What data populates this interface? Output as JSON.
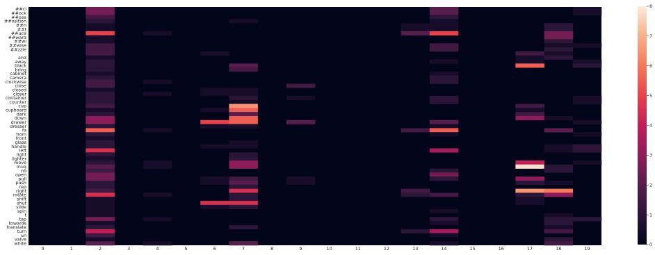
{
  "chart_data": {
    "type": "heatmap",
    "title": "",
    "xlabel": "",
    "ylabel": "",
    "x": [
      "0",
      "1",
      "2",
      "3",
      "4",
      "5",
      "6",
      "7",
      "8",
      "9",
      "10",
      "11",
      "12",
      "13",
      "14",
      "15",
      "16",
      "17",
      "18",
      "19"
    ],
    "y": [
      "##cl",
      "##ock",
      "##ose",
      "##osition",
      "##rl",
      "##t",
      "##uce",
      "##ward",
      "##wi",
      "##wise",
      "##zzle",
      "",
      "and",
      "away",
      "black",
      "bring",
      "cabinet",
      "camera",
      "clockwise",
      "close",
      "closed",
      "closer",
      "container",
      "counter",
      "cup",
      "cupboard",
      "dark",
      "down",
      "drawer",
      "dresser",
      "fa",
      "from",
      "front",
      "glass",
      "handle",
      "left",
      "light",
      "lighter",
      "move",
      "mug",
      "no",
      "open",
      "pull",
      "push",
      "rep",
      "right",
      "rotate",
      "shift",
      "shut",
      "slide",
      "spin",
      "t",
      "tap",
      "towards",
      "translate",
      "turn",
      "un",
      "valve",
      "white"
    ],
    "colorbar": {
      "min": 0,
      "max": 8,
      "ticks": [
        0,
        1,
        2,
        3,
        4,
        5,
        6,
        7,
        8
      ]
    },
    "grid": false,
    "cells": [
      [
        0,
        2,
        2.5
      ],
      [
        0,
        14,
        2
      ],
      [
        0,
        19,
        0.5
      ],
      [
        1,
        2,
        2.5
      ],
      [
        1,
        14,
        2
      ],
      [
        1,
        19,
        0.5
      ],
      [
        2,
        2,
        1.5
      ],
      [
        2,
        14,
        1
      ],
      [
        3,
        2,
        1
      ],
      [
        3,
        7,
        0.5
      ],
      [
        3,
        14,
        0.5
      ],
      [
        4,
        2,
        0.5
      ],
      [
        4,
        13,
        0.5
      ],
      [
        4,
        14,
        0.5
      ],
      [
        4,
        18,
        1
      ],
      [
        5,
        2,
        0.5
      ],
      [
        5,
        13,
        0.5
      ],
      [
        5,
        14,
        0.5
      ],
      [
        5,
        18,
        1
      ],
      [
        6,
        2,
        5
      ],
      [
        6,
        4,
        0.5
      ],
      [
        6,
        13,
        2
      ],
      [
        6,
        14,
        5
      ],
      [
        6,
        18,
        2.5
      ],
      [
        7,
        2,
        0.5
      ],
      [
        7,
        18,
        2.5
      ],
      [
        8,
        2,
        0.5
      ],
      [
        8,
        18,
        1
      ],
      [
        9,
        2,
        1.5
      ],
      [
        9,
        14,
        1.5
      ],
      [
        9,
        18,
        0.5
      ],
      [
        9,
        19,
        0.5
      ],
      [
        10,
        2,
        1.5
      ],
      [
        10,
        14,
        1.5
      ],
      [
        10,
        18,
        1
      ],
      [
        11,
        2,
        1.5
      ],
      [
        11,
        6,
        0.5
      ],
      [
        11,
        17,
        1.5
      ],
      [
        11,
        18,
        0.5
      ],
      [
        12,
        2,
        0.5
      ],
      [
        12,
        17,
        0.5
      ],
      [
        12,
        18,
        1
      ],
      [
        13,
        2,
        1
      ],
      [
        13,
        14,
        0.5
      ],
      [
        13,
        17,
        0.5
      ],
      [
        13,
        19,
        0.5
      ],
      [
        14,
        2,
        1
      ],
      [
        14,
        7,
        2
      ],
      [
        14,
        17,
        5.5
      ],
      [
        14,
        19,
        1
      ],
      [
        15,
        2,
        1
      ],
      [
        15,
        7,
        1.5
      ],
      [
        16,
        2,
        0.5
      ],
      [
        16,
        14,
        0.5
      ],
      [
        17,
        2,
        1
      ],
      [
        17,
        14,
        1
      ],
      [
        18,
        2,
        1.5
      ],
      [
        18,
        4,
        0.5
      ],
      [
        18,
        14,
        1
      ],
      [
        19,
        2,
        1.5
      ],
      [
        19,
        9,
        1.5
      ],
      [
        20,
        2,
        0.5
      ],
      [
        20,
        6,
        0.5
      ],
      [
        20,
        7,
        0.5
      ],
      [
        21,
        2,
        1
      ],
      [
        21,
        4,
        0.5
      ],
      [
        21,
        6,
        0.5
      ],
      [
        21,
        7,
        0.5
      ],
      [
        22,
        2,
        1
      ],
      [
        22,
        7,
        1
      ],
      [
        22,
        9,
        0.5
      ],
      [
        22,
        14,
        1
      ],
      [
        22,
        19,
        0.5
      ],
      [
        23,
        2,
        1
      ],
      [
        23,
        7,
        0.5
      ],
      [
        23,
        14,
        1
      ],
      [
        23,
        19,
        0.5
      ],
      [
        24,
        2,
        1.5
      ],
      [
        24,
        7,
        6.5
      ],
      [
        24,
        17,
        1.5
      ],
      [
        25,
        2,
        0.5
      ],
      [
        25,
        6,
        0.5
      ],
      [
        25,
        7,
        5.5
      ],
      [
        25,
        17,
        0.5
      ],
      [
        26,
        2,
        1
      ],
      [
        26,
        7,
        2
      ],
      [
        26,
        17,
        1.5
      ],
      [
        27,
        2,
        3
      ],
      [
        27,
        7,
        5.5
      ],
      [
        27,
        17,
        3
      ],
      [
        27,
        18,
        0.5
      ],
      [
        28,
        2,
        3
      ],
      [
        28,
        6,
        5
      ],
      [
        28,
        7,
        5.5
      ],
      [
        28,
        9,
        2
      ],
      [
        28,
        14,
        2
      ],
      [
        28,
        19,
        0.5
      ],
      [
        29,
        2,
        1
      ],
      [
        29,
        6,
        0.5
      ],
      [
        29,
        7,
        0.5
      ],
      [
        29,
        14,
        0.5
      ],
      [
        30,
        2,
        5.5
      ],
      [
        30,
        4,
        0.5
      ],
      [
        30,
        13,
        1.5
      ],
      [
        30,
        14,
        5.5
      ],
      [
        30,
        18,
        2
      ],
      [
        31,
        2,
        1
      ],
      [
        31,
        14,
        0.5
      ],
      [
        31,
        19,
        0.5
      ],
      [
        32,
        2,
        0.5
      ],
      [
        33,
        2,
        1
      ],
      [
        33,
        7,
        0.5
      ],
      [
        34,
        2,
        1
      ],
      [
        34,
        6,
        0.5
      ],
      [
        34,
        7,
        0.5
      ],
      [
        34,
        18,
        0.5
      ],
      [
        34,
        19,
        1
      ],
      [
        35,
        2,
        4.5
      ],
      [
        35,
        14,
        3.5
      ],
      [
        35,
        18,
        0.5
      ],
      [
        35,
        19,
        1
      ],
      [
        36,
        2,
        1
      ],
      [
        36,
        7,
        1
      ],
      [
        37,
        2,
        0.5
      ],
      [
        37,
        7,
        1
      ],
      [
        38,
        2,
        1
      ],
      [
        38,
        4,
        0.5
      ],
      [
        38,
        7,
        3
      ],
      [
        38,
        17,
        4
      ],
      [
        38,
        19,
        0.5
      ],
      [
        39,
        2,
        2
      ],
      [
        39,
        4,
        0.5
      ],
      [
        39,
        7,
        3
      ],
      [
        39,
        17,
        7.8
      ],
      [
        39,
        18,
        1
      ],
      [
        40,
        2,
        1.5
      ],
      [
        40,
        14,
        1
      ],
      [
        40,
        18,
        1
      ],
      [
        41,
        2,
        2.5
      ],
      [
        41,
        14,
        2.5
      ],
      [
        42,
        2,
        2.5
      ],
      [
        42,
        6,
        0.5
      ],
      [
        42,
        7,
        1.5
      ],
      [
        42,
        9,
        0.5
      ],
      [
        42,
        14,
        1
      ],
      [
        42,
        17,
        3
      ],
      [
        43,
        2,
        1
      ],
      [
        43,
        6,
        0.5
      ],
      [
        43,
        7,
        2
      ],
      [
        43,
        9,
        0.5
      ],
      [
        43,
        17,
        1
      ],
      [
        43,
        18,
        0.5
      ],
      [
        44,
        2,
        1
      ],
      [
        44,
        7,
        1
      ],
      [
        45,
        2,
        1.5
      ],
      [
        45,
        7,
        4.5
      ],
      [
        45,
        13,
        1.5
      ],
      [
        45,
        17,
        6.5
      ],
      [
        45,
        18,
        6
      ],
      [
        46,
        2,
        4.5
      ],
      [
        46,
        4,
        0.5
      ],
      [
        46,
        7,
        1
      ],
      [
        46,
        13,
        1
      ],
      [
        46,
        14,
        1.5
      ],
      [
        46,
        17,
        1
      ],
      [
        46,
        18,
        3
      ],
      [
        47,
        2,
        0.5
      ],
      [
        47,
        7,
        1
      ],
      [
        47,
        17,
        0.5
      ],
      [
        48,
        2,
        0.5
      ],
      [
        48,
        6,
        4.5
      ],
      [
        48,
        7,
        4.5
      ],
      [
        48,
        17,
        0.5
      ],
      [
        49,
        2,
        0.5
      ],
      [
        49,
        6,
        0.5
      ],
      [
        49,
        7,
        1
      ],
      [
        50,
        2,
        0.5
      ],
      [
        50,
        14,
        0.5
      ],
      [
        51,
        2,
        0.5
      ],
      [
        51,
        18,
        0.5
      ],
      [
        52,
        2,
        2.5
      ],
      [
        52,
        4,
        0.5
      ],
      [
        52,
        14,
        1
      ],
      [
        52,
        18,
        1
      ],
      [
        52,
        19,
        1
      ],
      [
        53,
        2,
        0.5
      ],
      [
        53,
        14,
        0.5
      ],
      [
        53,
        18,
        1
      ],
      [
        54,
        2,
        1
      ],
      [
        54,
        7,
        1
      ],
      [
        54,
        18,
        0.5
      ],
      [
        55,
        2,
        4
      ],
      [
        55,
        13,
        1
      ],
      [
        55,
        14,
        3.5
      ],
      [
        55,
        18,
        1.5
      ],
      [
        56,
        2,
        1.5
      ],
      [
        56,
        14,
        0.5
      ],
      [
        57,
        2,
        0.5
      ],
      [
        57,
        18,
        1
      ],
      [
        58,
        2,
        2
      ],
      [
        58,
        4,
        0.5
      ],
      [
        58,
        7,
        2
      ],
      [
        58,
        14,
        0.5
      ],
      [
        58,
        18,
        1.5
      ]
    ]
  }
}
